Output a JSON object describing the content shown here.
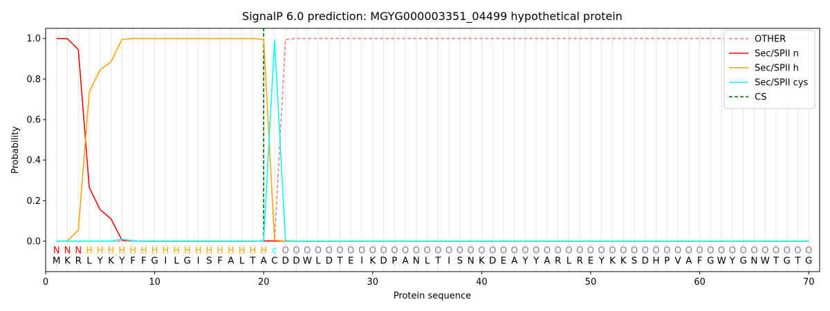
{
  "chart_data": {
    "type": "line",
    "title": "SignalP 6.0 prediction: MGYG000003351_04499 hypothetical protein",
    "xlabel": "Protein sequence",
    "ylabel": "Probability",
    "xlim": [
      0,
      71
    ],
    "ylim": [
      -0.15,
      1.05
    ],
    "xticks": [
      0,
      10,
      20,
      30,
      40,
      50,
      60,
      70
    ],
    "yticks": [
      "0.0",
      "0.2",
      "0.4",
      "0.6",
      "0.8",
      "1.0"
    ],
    "grid": "vertical lines at each residue",
    "legend_position": "top-right",
    "sequence": [
      "M",
      "K",
      "R",
      "L",
      "Y",
      "K",
      "Y",
      "F",
      "F",
      "G",
      "I",
      "L",
      "G",
      "I",
      "S",
      "F",
      "A",
      "L",
      "T",
      "A",
      "C",
      "D",
      "D",
      "W",
      "L",
      "D",
      "T",
      "E",
      "I",
      "K",
      "D",
      "P",
      "A",
      "N",
      "L",
      "T",
      "I",
      "S",
      "N",
      "K",
      "D",
      "E",
      "A",
      "Y",
      "Y",
      "A",
      "R",
      "L",
      "R",
      "E",
      "Y",
      "K",
      "K",
      "S",
      "D",
      "H",
      "P",
      "V",
      "A",
      "F",
      "G",
      "W",
      "Y",
      "G",
      "N",
      "W",
      "T",
      "G",
      "T",
      "G"
    ],
    "annotations": [
      "N",
      "N",
      "N",
      "H",
      "H",
      "H",
      "H",
      "H",
      "H",
      "H",
      "H",
      "H",
      "H",
      "H",
      "H",
      "H",
      "H",
      "H",
      "H",
      "H",
      "c",
      "O",
      "O",
      "O",
      "O",
      "O",
      "O",
      "O",
      "O",
      "O",
      "O",
      "O",
      "O",
      "O",
      "O",
      "O",
      "O",
      "O",
      "O",
      "O",
      "O",
      "O",
      "O",
      "O",
      "O",
      "O",
      "O",
      "O",
      "O",
      "O",
      "O",
      "O",
      "O",
      "O",
      "O",
      "O",
      "O",
      "O",
      "O",
      "O",
      "O",
      "O",
      "O",
      "O",
      "O",
      "O",
      "O",
      "O",
      "O",
      "O"
    ],
    "annotation_colors": {
      "N": "#ff0000",
      "H": "#ffa500",
      "c": "#00ffff",
      "O": "#808080"
    },
    "cleavage_site": 20,
    "series": [
      {
        "name": "OTHER",
        "color": "#f08080",
        "dash": "dashed",
        "x": [
          1,
          2,
          3,
          4,
          5,
          6,
          7,
          8,
          9,
          10,
          11,
          12,
          13,
          14,
          15,
          16,
          17,
          18,
          19,
          20,
          21,
          22,
          23,
          70
        ],
        "y": [
          0,
          0,
          0,
          0,
          0,
          0,
          0,
          0,
          0,
          0,
          0,
          0,
          0,
          0,
          0,
          0,
          0,
          0,
          0,
          0,
          0,
          0.995,
          1.0,
          1.0
        ]
      },
      {
        "name": "Sec/SPII n",
        "color": "#ff0000",
        "dash": "solid",
        "x": [
          1,
          2,
          3,
          4,
          5,
          6,
          7,
          8,
          9,
          10,
          11,
          12,
          13,
          14,
          15,
          16,
          17,
          18,
          19,
          20,
          21,
          22,
          23,
          70
        ],
        "y": [
          1.0,
          0.999,
          0.945,
          0.265,
          0.155,
          0.11,
          0.005,
          0.002,
          0,
          0,
          0,
          0,
          0,
          0,
          0,
          0,
          0,
          0,
          0,
          0.002,
          0.001,
          0,
          0,
          0
        ]
      },
      {
        "name": "Sec/SPII h",
        "color": "#ffa500",
        "dash": "solid",
        "x": [
          1,
          2,
          3,
          4,
          5,
          6,
          7,
          8,
          9,
          10,
          11,
          12,
          13,
          14,
          15,
          16,
          17,
          18,
          19,
          20,
          21,
          22,
          23,
          70
        ],
        "y": [
          0,
          0.002,
          0.055,
          0.735,
          0.845,
          0.885,
          0.995,
          1.0,
          1.0,
          1.0,
          1.0,
          1.0,
          1.0,
          1.0,
          1.0,
          1.0,
          1.0,
          1.0,
          1.0,
          0.995,
          0.005,
          0,
          0,
          0
        ]
      },
      {
        "name": "Sec/SPII cys",
        "color": "#00ffff",
        "dash": "solid",
        "x": [
          1,
          2,
          3,
          4,
          5,
          6,
          7,
          8,
          9,
          10,
          11,
          12,
          13,
          14,
          15,
          16,
          17,
          18,
          19,
          20,
          21,
          22,
          23,
          70
        ],
        "y": [
          0,
          0,
          0,
          0,
          0,
          0,
          0.01,
          0.002,
          0,
          0,
          0,
          0,
          0,
          0,
          0,
          0,
          0,
          0,
          0,
          0.002,
          0.993,
          0.003,
          0,
          0
        ]
      },
      {
        "name": "CS",
        "color": "#006400",
        "dash": "dashed",
        "x": [],
        "y": []
      }
    ]
  }
}
